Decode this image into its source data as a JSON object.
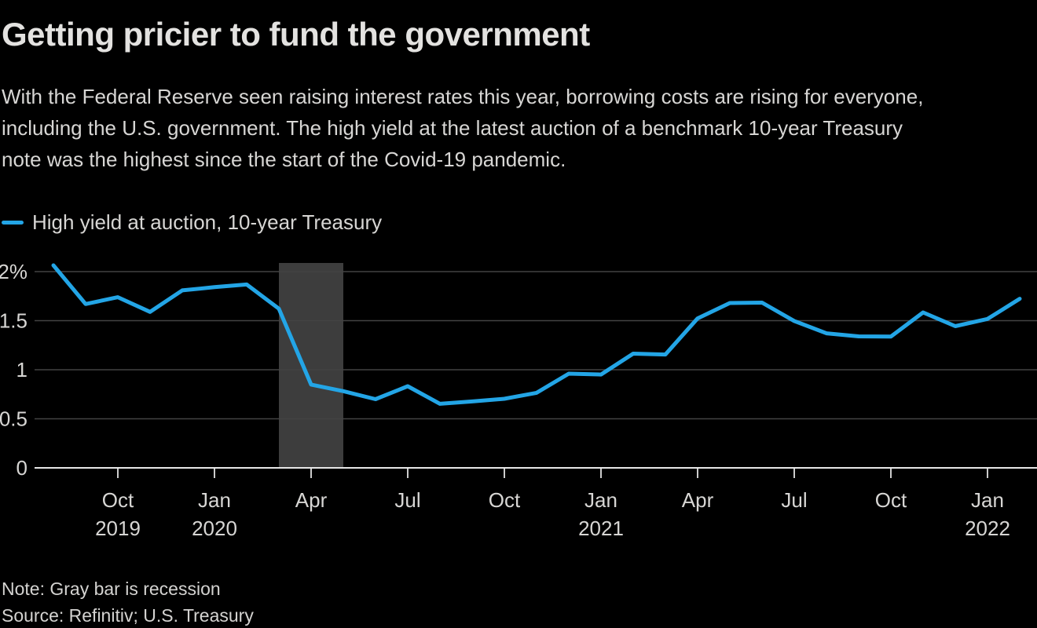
{
  "header": {
    "title": "Getting pricier to fund the government",
    "subtitle": "With the Federal Reserve seen raising interest rates this year, borrowing costs are rising for everyone,\nincluding the U.S. government. The high yield at the latest auction of a benchmark 10-year Treasury\nnote was the highest since the start of the Covid-19 pandemic."
  },
  "legend": {
    "label": "High yield at auction, 10-year Treasury"
  },
  "chart_data": {
    "type": "line",
    "title": "High yield at auction, 10-year Treasury",
    "unit": "%",
    "grid": "horizontal",
    "legend_position": "top-left",
    "ylim": [
      0,
      2.09
    ],
    "x": [
      "Jul 2019",
      "Aug 2019",
      "Sep 2019",
      "Oct 2019",
      "Nov 2019",
      "Dec 2019",
      "Jan 2020",
      "Feb 2020",
      "Mar 2020",
      "Apr 2020",
      "May 2020",
      "Jun 2020",
      "Jul 2020",
      "Aug 2020",
      "Sep 2020",
      "Oct 2020",
      "Nov 2020",
      "Dec 2020",
      "Jan 2021",
      "Feb 2021",
      "Mar 2021",
      "Apr 2021",
      "May 2021",
      "Jun 2021",
      "Jul 2021",
      "Aug 2021",
      "Sep 2021",
      "Oct 2021",
      "Nov 2021",
      "Dec 2021",
      "Jan 2022"
    ],
    "series": [
      {
        "name": "High yield at auction, 10-year Treasury",
        "color": "#23a5e6",
        "values": [
          2.064,
          1.67,
          1.739,
          1.59,
          1.809,
          1.842,
          1.869,
          1.622,
          0.849,
          0.782,
          0.7,
          0.832,
          0.653,
          0.677,
          0.704,
          0.765,
          0.96,
          0.951,
          1.164,
          1.155,
          1.523,
          1.68,
          1.684,
          1.497,
          1.371,
          1.34,
          1.338,
          1.584,
          1.444,
          1.518,
          1.723
        ]
      }
    ],
    "y_ticks": [
      {
        "label": "2%",
        "value": 2.0
      },
      {
        "label": "1.5",
        "value": 1.5
      },
      {
        "label": "1",
        "value": 1.0
      },
      {
        "label": "0.5",
        "value": 0.5
      },
      {
        "label": "0",
        "value": 0.0
      }
    ],
    "x_ticks": [
      {
        "month": "Oct 2019",
        "label": "Oct",
        "year_label": "2019"
      },
      {
        "month": "Jan 2020",
        "label": "Jan",
        "year_label": "2020"
      },
      {
        "month": "Apr 2020",
        "label": "Apr",
        "year_label": ""
      },
      {
        "month": "Jul 2020",
        "label": "Jul",
        "year_label": ""
      },
      {
        "month": "Oct 2020",
        "label": "Oct",
        "year_label": ""
      },
      {
        "month": "Jan 2021",
        "label": "Jan",
        "year_label": "2021"
      },
      {
        "month": "Apr 2021",
        "label": "Apr",
        "year_label": ""
      },
      {
        "month": "Jul 2021",
        "label": "Jul",
        "year_label": ""
      },
      {
        "month": "Oct 2021",
        "label": "Oct",
        "year_label": ""
      },
      {
        "month": "Jan 2022",
        "label": "Jan",
        "year_label": "2022"
      }
    ],
    "annotations": [
      {
        "type": "band",
        "from": "Feb 2020",
        "to": "Apr 2020",
        "label": "recession"
      }
    ]
  },
  "footer": {
    "note": "Note: Gray bar is recession",
    "source": "Source: Refinitiv; U.S. Treasury"
  },
  "colors": {
    "background": "#000000",
    "line": "#23a5e6",
    "recession_band": "#3d3d3d",
    "gridline": "#434343",
    "axis_baseline": "#e6e6e6",
    "tick_mark": "#cccccc",
    "title_text": "#e3e2e0",
    "body_text": "#d7d6d4"
  }
}
